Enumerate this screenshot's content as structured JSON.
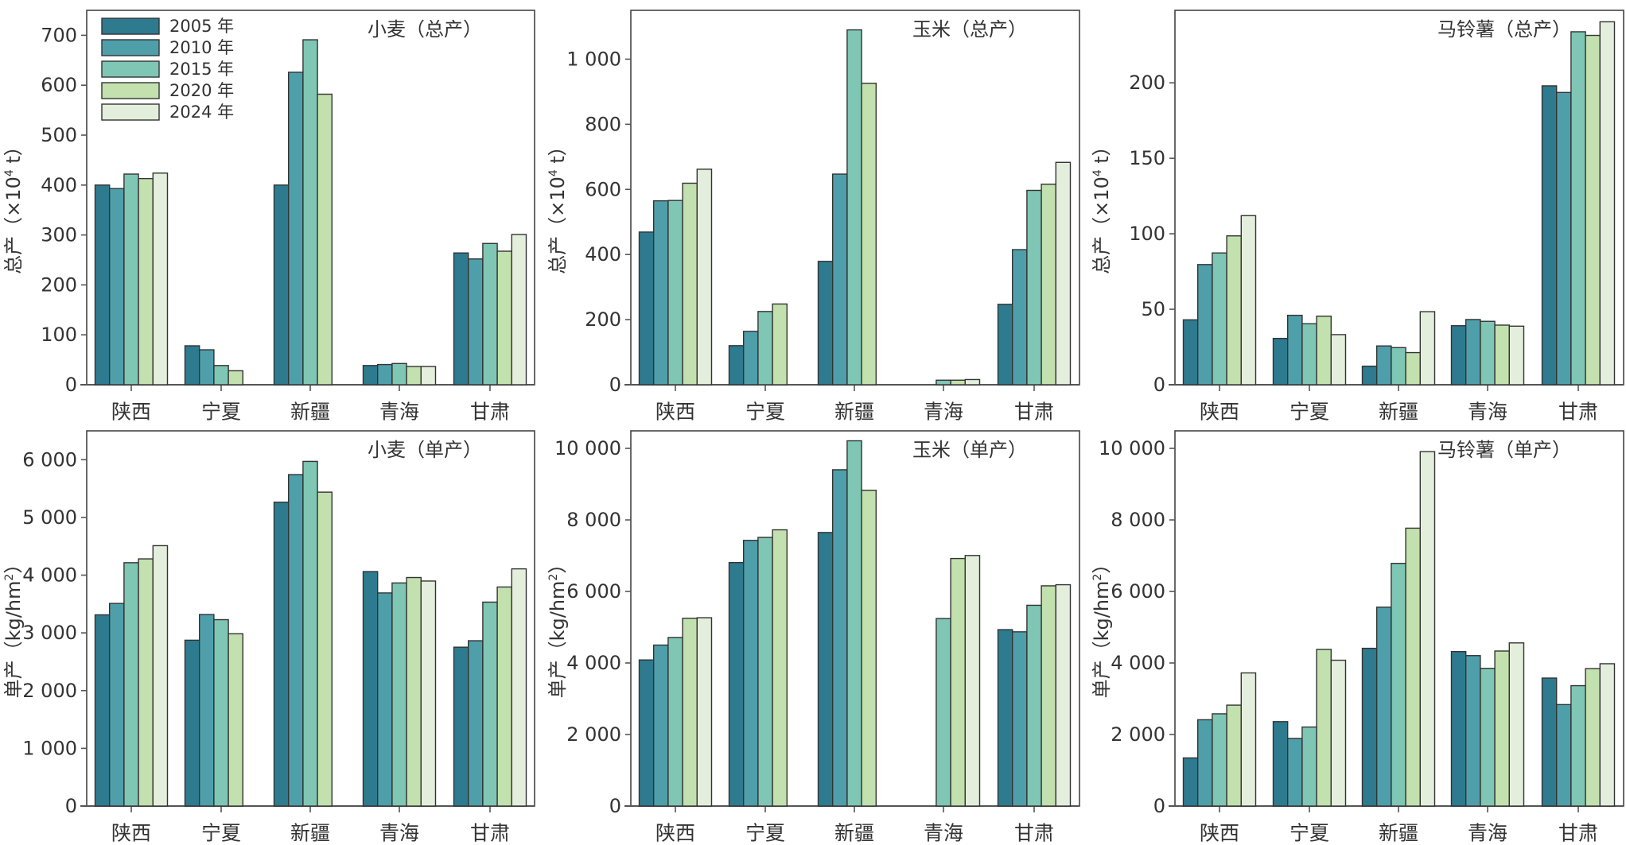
{
  "chart_data": [
    {
      "type": "bar",
      "title": "小麦（总产）",
      "ylabel": "总产（×10⁴ t）",
      "ylabel_parts": {
        "prefix": "总产（×10",
        "sup": "4",
        "suffix": " t）"
      },
      "xlabel": "",
      "ylim": [
        0,
        750
      ],
      "yticks": [
        0,
        100,
        200,
        300,
        400,
        500,
        600,
        700
      ],
      "ytick_labels": [
        "0",
        "100",
        "200",
        "300",
        "400",
        "500",
        "600",
        "700"
      ],
      "categories": [
        "陕西",
        "宁夏",
        "新疆",
        "青海",
        "甘肃"
      ],
      "series": [
        {
          "name": "2005 年",
          "values": [
            400,
            78,
            400,
            38.5,
            264
          ]
        },
        {
          "name": "2010 年",
          "values": [
            393,
            70,
            626,
            40.5,
            252
          ]
        },
        {
          "name": "2015 年",
          "values": [
            422,
            38.5,
            691,
            42.5,
            283
          ]
        },
        {
          "name": "2020 年",
          "values": [
            413,
            28,
            582,
            36.5,
            267.5
          ]
        },
        {
          "name": "2024 年",
          "values": [
            424,
            null,
            null,
            36.5,
            301
          ]
        }
      ],
      "show_legend": true,
      "legend_position": "top-left",
      "grid": false
    },
    {
      "type": "bar",
      "title": "玉米（总产）",
      "ylabel": "总产（×10⁴ t）",
      "ylabel_parts": {
        "prefix": "总产（×10",
        "sup": "4",
        "suffix": " t）"
      },
      "xlabel": "",
      "ylim": [
        0,
        1150
      ],
      "yticks": [
        0,
        200,
        400,
        600,
        800,
        1000
      ],
      "ytick_labels": [
        "0",
        "200",
        "400",
        "600",
        "800",
        "1 000"
      ],
      "categories": [
        "陕西",
        "宁夏",
        "新疆",
        "青海",
        "甘肃"
      ],
      "series": [
        {
          "name": "2005 年",
          "values": [
            469,
            120,
            379,
            null,
            247
          ]
        },
        {
          "name": "2010 年",
          "values": [
            565,
            164,
            647,
            null,
            415
          ]
        },
        {
          "name": "2015 年",
          "values": [
            566,
            225,
            1090,
            14,
            597
          ]
        },
        {
          "name": "2020 年",
          "values": [
            619,
            248,
            926,
            14,
            616
          ]
        },
        {
          "name": "2024 年",
          "values": [
            662,
            null,
            null,
            16,
            683
          ]
        }
      ],
      "show_legend": false,
      "grid": false
    },
    {
      "type": "bar",
      "title": "马铃薯（总产）",
      "ylabel": "总产（×10⁴ t）",
      "ylabel_parts": {
        "prefix": "总产（×10",
        "sup": "4",
        "suffix": " t）"
      },
      "xlabel": "",
      "ylim": [
        0,
        248
      ],
      "yticks": [
        0,
        50,
        100,
        150,
        200
      ],
      "ytick_labels": [
        "0",
        "50",
        "100",
        "150",
        "200"
      ],
      "categories": [
        "陕西",
        "宁夏",
        "新疆",
        "青海",
        "甘肃"
      ],
      "series": [
        {
          "name": "2005 年",
          "values": [
            43,
            30.7,
            12.3,
            39.1,
            198
          ]
        },
        {
          "name": "2010 年",
          "values": [
            79.6,
            46,
            25.7,
            43.2,
            193.6
          ]
        },
        {
          "name": "2015 年",
          "values": [
            87.3,
            40.4,
            24.6,
            42,
            233.8
          ]
        },
        {
          "name": "2020 年",
          "values": [
            98.6,
            45.4,
            21.3,
            39.5,
            231.4
          ]
        },
        {
          "name": "2024 年",
          "values": [
            112,
            33.2,
            48.4,
            38.8,
            240.4
          ]
        }
      ],
      "show_legend": false,
      "grid": false
    },
    {
      "type": "bar",
      "title": "小麦（单产）",
      "ylabel": "单产（kg/hm²）",
      "ylabel_parts": {
        "prefix": "单产（kg/hm",
        "sup": "2",
        "suffix": "）"
      },
      "xlabel": "",
      "ylim": [
        0,
        6500
      ],
      "yticks": [
        0,
        1000,
        2000,
        3000,
        4000,
        5000,
        6000
      ],
      "ytick_labels": [
        "0",
        "1 000",
        "2 000",
        "3 000",
        "4 000",
        "5 000",
        "6 000"
      ],
      "categories": [
        "陕西",
        "宁夏",
        "新疆",
        "青海",
        "甘肃"
      ],
      "series": [
        {
          "name": "2005 年",
          "values": [
            3313,
            2873,
            5264,
            4062,
            2752
          ]
        },
        {
          "name": "2010 年",
          "values": [
            3510,
            3318,
            5742,
            3692,
            2864
          ]
        },
        {
          "name": "2015 年",
          "values": [
            4216,
            3229,
            5971,
            3865,
            3533
          ]
        },
        {
          "name": "2020 年",
          "values": [
            4282,
            2985,
            5438,
            3959,
            3795
          ]
        },
        {
          "name": "2024 年",
          "values": [
            4511,
            null,
            null,
            3898,
            4109
          ]
        }
      ],
      "show_legend": false,
      "grid": false
    },
    {
      "type": "bar",
      "title": "玉米（单产）",
      "ylabel": "单产（kg/hm²）",
      "ylabel_parts": {
        "prefix": "单产（kg/hm",
        "sup": "2",
        "suffix": "）"
      },
      "xlabel": "",
      "ylim": [
        0,
        10490
      ],
      "yticks": [
        0,
        2000,
        4000,
        6000,
        8000,
        10000
      ],
      "ytick_labels": [
        "0",
        "2 000",
        "4 000",
        "6 000",
        "8 000",
        "10 000"
      ],
      "categories": [
        "陕西",
        "宁夏",
        "新疆",
        "青海",
        "甘肃"
      ],
      "series": [
        {
          "name": "2005 年",
          "values": [
            4085,
            6808,
            7648,
            null,
            4932
          ]
        },
        {
          "name": "2010 年",
          "values": [
            4501,
            7428,
            9402,
            null,
            4871
          ]
        },
        {
          "name": "2015 年",
          "values": [
            4713,
            7511,
            10212,
            5242,
            5613
          ]
        },
        {
          "name": "2020 年",
          "values": [
            5250,
            7723,
            8828,
            6921,
            6157
          ]
        },
        {
          "name": "2024 年",
          "values": [
            5265,
            null,
            null,
            7005,
            6188
          ]
        }
      ],
      "show_legend": false,
      "grid": false
    },
    {
      "type": "bar",
      "title": "马铃薯（单产）",
      "ylabel": "单产（kg/hm²）",
      "ylabel_parts": {
        "prefix": "单产（kg/hm",
        "sup": "2",
        "suffix": "）"
      },
      "xlabel": "",
      "ylim": [
        0,
        10490
      ],
      "yticks": [
        0,
        2000,
        4000,
        6000,
        8000,
        10000
      ],
      "ytick_labels": [
        "0",
        "2 000",
        "4 000",
        "6 000",
        "8 000",
        "10 000"
      ],
      "categories": [
        "陕西",
        "宁夏",
        "新疆",
        "青海",
        "甘肃"
      ],
      "series": [
        {
          "name": "2005 年",
          "values": [
            1346,
            2360,
            4410,
            4319,
            3578
          ]
        },
        {
          "name": "2010 年",
          "values": [
            2413,
            1891,
            5560,
            4206,
            2837
          ]
        },
        {
          "name": "2015 年",
          "values": [
            2579,
            2209,
            6785,
            3850,
            3366
          ]
        },
        {
          "name": "2020 年",
          "values": [
            2821,
            4380,
            7769,
            4334,
            3843
          ]
        },
        {
          "name": "2024 年",
          "values": [
            3722,
            4077,
            9909,
            4561,
            3979
          ]
        }
      ],
      "show_legend": false,
      "grid": false
    }
  ],
  "legend": {
    "items": [
      {
        "label": "2005 年",
        "color": "#2e7a8f"
      },
      {
        "label": "2010 年",
        "color": "#4f9fab"
      },
      {
        "label": "2015 年",
        "color": "#7fc6b4"
      },
      {
        "label": "2020 年",
        "color": "#c2e1ae"
      },
      {
        "label": "2024 年",
        "color": "#e4eedc"
      }
    ]
  },
  "colors": {
    "series": [
      "#2e7a8f",
      "#4f9fab",
      "#7fc6b4",
      "#c2e1ae",
      "#e4eedc"
    ],
    "text": "#333333",
    "frame": "#444444"
  }
}
